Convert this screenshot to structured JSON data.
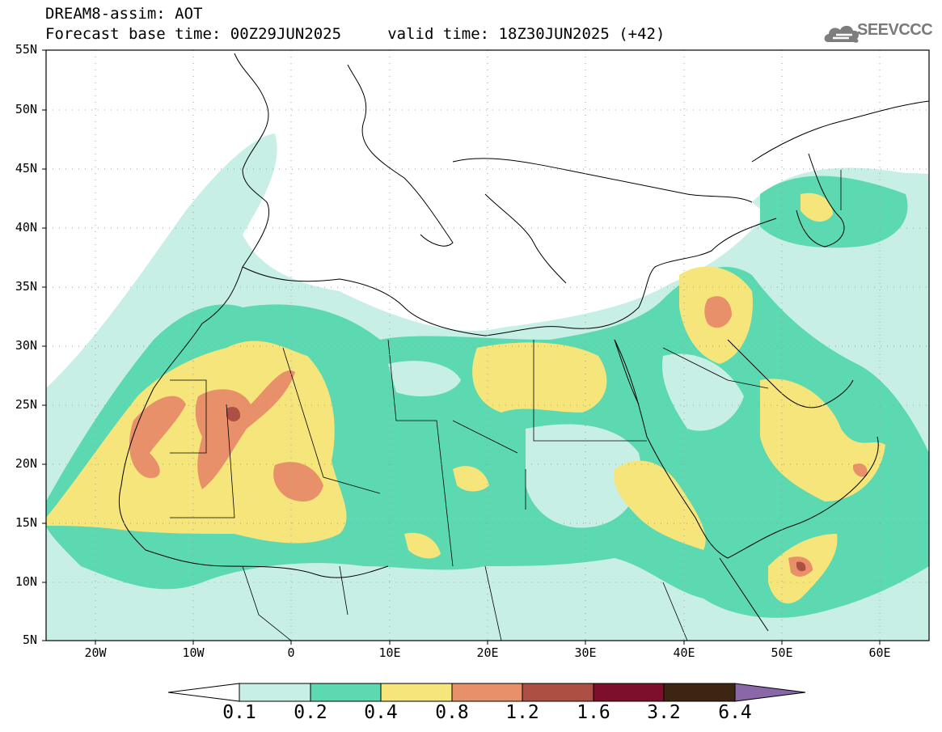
{
  "header": {
    "title_line1": "DREAM8-assim: AOT",
    "title_line2": "Forecast base time: 00Z29JUN2025     valid time: 18Z30JUN2025 (+42)",
    "logo_text": "SEEVCCC"
  },
  "map": {
    "lat_ticks": [
      "55N",
      "50N",
      "45N",
      "40N",
      "35N",
      "30N",
      "25N",
      "20N",
      "15N",
      "10N",
      "5N"
    ],
    "lon_ticks": [
      "20W",
      "10W",
      "0",
      "10E",
      "20E",
      "30E",
      "40E",
      "50E",
      "60E"
    ],
    "lon_range": [
      -25,
      65
    ],
    "lat_range": [
      5,
      55
    ],
    "grid": "dotted"
  },
  "colorbar": {
    "levels": [
      "0.1",
      "0.2",
      "0.4",
      "0.8",
      "1.2",
      "1.6",
      "3.2",
      "6.4"
    ],
    "colors": [
      "#ffffff",
      "#c8efe6",
      "#5cd9b0",
      "#f5e57a",
      "#e8906a",
      "#ad4f42",
      "#7e0f2a",
      "#3c2512",
      "#8a68a8"
    ]
  }
}
